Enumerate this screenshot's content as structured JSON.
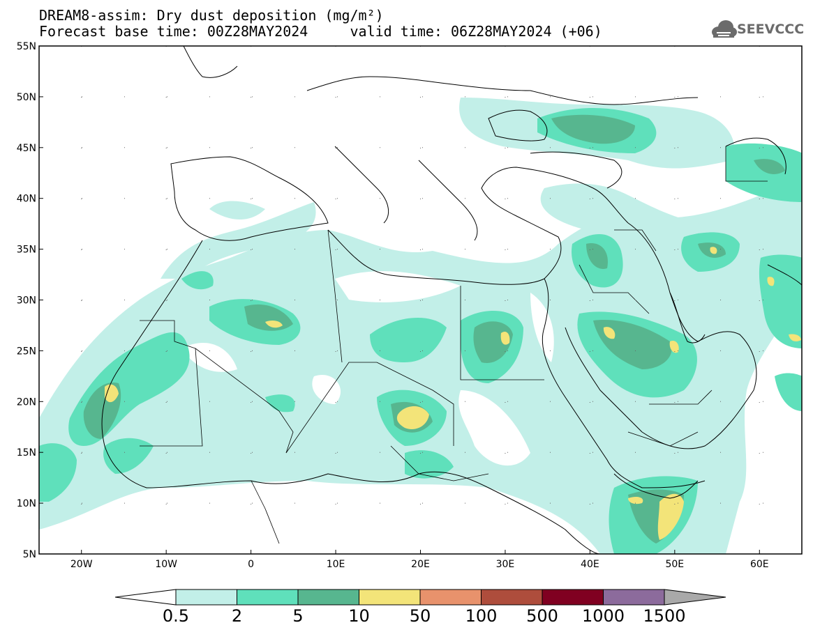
{
  "header": {
    "title_line1": "DREAM8-assim: Dry dust deposition (mg/m²)",
    "title_line2": "Forecast base time: 00Z28MAY2024     valid time: 06Z28MAY2024 (+06)",
    "logo_text": "SEEVCCC"
  },
  "map": {
    "lon_range": [
      -25,
      65
    ],
    "lat_range": [
      5,
      55
    ],
    "lat_ticks": [
      {
        "value": 55,
        "label": "55N"
      },
      {
        "value": 50,
        "label": "50N"
      },
      {
        "value": 45,
        "label": "45N"
      },
      {
        "value": 40,
        "label": "40N"
      },
      {
        "value": 35,
        "label": "35N"
      },
      {
        "value": 30,
        "label": "30N"
      },
      {
        "value": 25,
        "label": "25N"
      },
      {
        "value": 20,
        "label": "20N"
      },
      {
        "value": 15,
        "label": "15N"
      },
      {
        "value": 10,
        "label": "10N"
      },
      {
        "value": 5,
        "label": "5N"
      }
    ],
    "lon_ticks": [
      {
        "value": -20,
        "label": "20W"
      },
      {
        "value": -10,
        "label": "10W"
      },
      {
        "value": 0,
        "label": "0"
      },
      {
        "value": 10,
        "label": "10E"
      },
      {
        "value": 20,
        "label": "20E"
      },
      {
        "value": 30,
        "label": "30E"
      },
      {
        "value": 40,
        "label": "40E"
      },
      {
        "value": 50,
        "label": "50E"
      },
      {
        "value": 60,
        "label": "60E"
      }
    ],
    "gridlines": "dotted"
  },
  "legend": {
    "labels": [
      "0.5",
      "2",
      "5",
      "10",
      "50",
      "100",
      "500",
      "1000",
      "1500"
    ],
    "colors": [
      "#c2efe8",
      "#5fe0bb",
      "#57b68f",
      "#f3e479",
      "#e8926c",
      "#ae4d3c",
      "#800021",
      "#8c6b9c"
    ],
    "under_color": "#ffffff",
    "over_color": "#a9a9a9"
  }
}
